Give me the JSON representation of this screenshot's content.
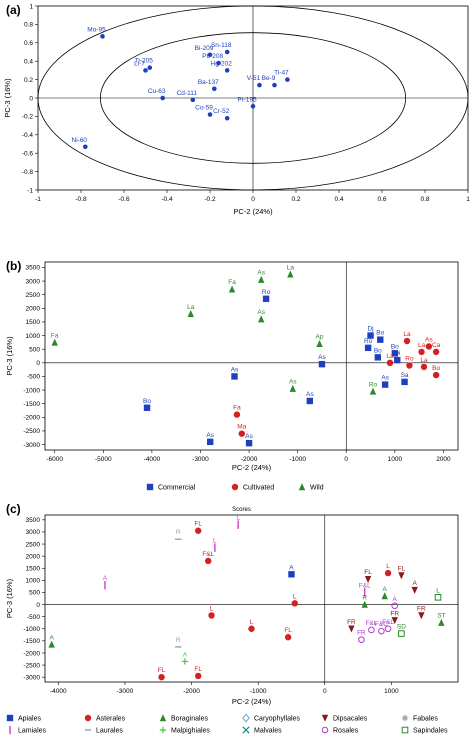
{
  "chart_data": [
    {
      "panel": "(a)",
      "type": "scatter",
      "xlabel": "PC-2 (24%)",
      "ylabel": "PC-3 (16%)",
      "xlim": [
        -1,
        1
      ],
      "ylim": [
        -1,
        1
      ],
      "xticks": [
        -1,
        -0.8,
        -0.6,
        -0.4,
        -0.2,
        0,
        0.2,
        0.4,
        0.6,
        0.8,
        1
      ],
      "yticks": [
        1,
        0.8,
        0.6,
        0.4,
        0.2,
        0,
        -0.2,
        -0.4,
        -0.6,
        -0.8,
        -1
      ],
      "xticklabels": [
        "-1",
        "-0.8",
        "-0.6",
        "-0.4",
        "-0.2",
        "0",
        "0.2",
        "0.4",
        "0.6",
        "0.8",
        "1"
      ],
      "yticklabels": [
        "1",
        "0.8",
        "0.6",
        "0.4",
        "0.2",
        "0",
        "-0.2",
        "-0.4",
        "-0.6",
        "-0.8",
        "-1"
      ],
      "color": "#1f3fbf",
      "points": [
        {
          "label": "Mo-95",
          "x": -0.7,
          "y": 0.67
        },
        {
          "label": "Sn-118",
          "x": -0.12,
          "y": 0.5
        },
        {
          "label": "Bi-209",
          "x": -0.2,
          "y": 0.47
        },
        {
          "label": "Pb-208",
          "x": -0.16,
          "y": 0.38
        },
        {
          "label": "Ti-205",
          "x": -0.48,
          "y": 0.33
        },
        {
          "label": "Li-7",
          "x": -0.5,
          "y": 0.3
        },
        {
          "label": "Hg-202",
          "x": -0.12,
          "y": 0.3
        },
        {
          "label": "Ti-47",
          "x": 0.16,
          "y": 0.2
        },
        {
          "label": "Ba-137",
          "x": -0.18,
          "y": 0.1
        },
        {
          "label": "V-51",
          "x": 0.03,
          "y": 0.14
        },
        {
          "label": "Be-9",
          "x": 0.1,
          "y": 0.14
        },
        {
          "label": "Cu-63",
          "x": -0.42,
          "y": 0.0
        },
        {
          "label": "Cd-111",
          "x": -0.28,
          "y": -0.02
        },
        {
          "label": "Pt-195",
          "x": 0.0,
          "y": -0.09
        },
        {
          "label": "Co-59",
          "x": -0.2,
          "y": -0.18
        },
        {
          "label": "Cr-52",
          "x": -0.12,
          "y": -0.22
        },
        {
          "label": "Ni-60",
          "x": -0.78,
          "y": -0.53
        }
      ]
    },
    {
      "panel": "(b)",
      "type": "scatter",
      "xlabel": "PC-2 (24%)",
      "ylabel": "PC-3 (16%)",
      "xlim": [
        -6200,
        2300
      ],
      "ylim": [
        -3200,
        3700
      ],
      "xticks": [
        -6000,
        -5000,
        -4000,
        -3000,
        -2000,
        -1000,
        0,
        1000,
        2000
      ],
      "yticks": [
        3500,
        3000,
        2500,
        2000,
        1500,
        1000,
        500,
        0,
        -500,
        -1000,
        -1500,
        -2000,
        -2500,
        -3000
      ],
      "xticklabels": [
        "-6000",
        "-5000",
        "-4000",
        "-3000",
        "-2000",
        "-1000",
        "0",
        "1000",
        "2000"
      ],
      "yticklabels": [
        "3500",
        "3000",
        "2500",
        "2000",
        "1500",
        "1000",
        "500",
        "0",
        "-500",
        "-1000",
        "-1500",
        "-2000",
        "-2500",
        "-3000"
      ],
      "legend": [
        {
          "name": "Commercial",
          "marker": "square",
          "color": "#1f3fbf"
        },
        {
          "name": "Cultivated",
          "marker": "circle",
          "color": "#d42020"
        },
        {
          "name": "Wild",
          "marker": "triangle",
          "color": "#2a8a2a"
        }
      ],
      "legend_placement": "bottom",
      "points": [
        {
          "label": "Fa",
          "x": -6000,
          "y": 750,
          "group": "Wild"
        },
        {
          "label": "La",
          "x": -3200,
          "y": 1800,
          "group": "Wild"
        },
        {
          "label": "Fa",
          "x": -2350,
          "y": 2700,
          "group": "Wild"
        },
        {
          "label": "As",
          "x": -1750,
          "y": 3050,
          "group": "Wild"
        },
        {
          "label": "La",
          "x": -1150,
          "y": 3250,
          "group": "Wild"
        },
        {
          "label": "As",
          "x": -1750,
          "y": 1600,
          "group": "Wild"
        },
        {
          "label": "Ro",
          "x": -1650,
          "y": 2350,
          "group": "Commercial"
        },
        {
          "label": "Ap",
          "x": -550,
          "y": 700,
          "group": "Wild"
        },
        {
          "label": "As",
          "x": -500,
          "y": -50,
          "group": "Commercial"
        },
        {
          "label": "As",
          "x": -2300,
          "y": -500,
          "group": "Commercial"
        },
        {
          "label": "As",
          "x": -1100,
          "y": -950,
          "group": "Wild"
        },
        {
          "label": "As",
          "x": -750,
          "y": -1400,
          "group": "Commercial"
        },
        {
          "label": "Bo",
          "x": -4100,
          "y": -1650,
          "group": "Commercial"
        },
        {
          "label": "Fa",
          "x": -2250,
          "y": -1900,
          "group": "Cultivated"
        },
        {
          "label": "Ma",
          "x": -2150,
          "y": -2600,
          "group": "Cultivated"
        },
        {
          "label": "As",
          "x": -2800,
          "y": -2900,
          "group": "Commercial"
        },
        {
          "label": "As",
          "x": -2000,
          "y": -2950,
          "group": "Commercial"
        },
        {
          "label": "Dj",
          "x": 500,
          "y": 1000,
          "group": "Commercial"
        },
        {
          "label": "Bo",
          "x": 700,
          "y": 850,
          "group": "Commercial"
        },
        {
          "label": "Ro",
          "x": 450,
          "y": 550,
          "group": "Commercial"
        },
        {
          "label": "Bo",
          "x": 650,
          "y": 200,
          "group": "Commercial"
        },
        {
          "label": "Bo",
          "x": 1000,
          "y": 350,
          "group": "Commercial"
        },
        {
          "label": "Di",
          "x": 1050,
          "y": 100,
          "group": "Commercial"
        },
        {
          "label": "La",
          "x": 1250,
          "y": 800,
          "group": "Cultivated"
        },
        {
          "label": "La",
          "x": 900,
          "y": 0,
          "group": "Cultivated"
        },
        {
          "label": "Ro",
          "x": 1300,
          "y": -100,
          "group": "Cultivated"
        },
        {
          "label": "As",
          "x": 1700,
          "y": 600,
          "group": "Cultivated"
        },
        {
          "label": "La",
          "x": 1550,
          "y": 400,
          "group": "Cultivated"
        },
        {
          "label": "Ca",
          "x": 1850,
          "y": 400,
          "group": "Cultivated"
        },
        {
          "label": "Bo",
          "x": 1850,
          "y": -450,
          "group": "Cultivated"
        },
        {
          "label": "La",
          "x": 1600,
          "y": -150,
          "group": "Cultivated"
        },
        {
          "label": "Sa",
          "x": 1200,
          "y": -700,
          "group": "Commercial"
        },
        {
          "label": "Ro",
          "x": 550,
          "y": -1050,
          "group": "Wild"
        },
        {
          "label": "As",
          "x": 800,
          "y": -800,
          "group": "Commercial"
        }
      ]
    },
    {
      "panel": "(c)",
      "type": "scatter",
      "title": "Scores",
      "xlabel": "PC-2 (24%)",
      "ylabel": "PC-3 (16%)",
      "xlim": [
        -4200,
        2000
      ],
      "ylim": [
        -3200,
        3700
      ],
      "xticks": [
        -4000,
        -3000,
        -2000,
        -1000,
        0,
        1000
      ],
      "yticks": [
        3500,
        3000,
        2500,
        2000,
        1500,
        1000,
        500,
        0,
        -500,
        -1000,
        -1500,
        -2000,
        -2500,
        -3000
      ],
      "xticklabels": [
        "-4000",
        "-3000",
        "-2000",
        "-1000",
        "0",
        "1000"
      ],
      "yticklabels": [
        "3500",
        "3000",
        "2500",
        "2000",
        "1500",
        "1000",
        "500",
        "0",
        "-500",
        "-1000",
        "-1500",
        "-2000",
        "-2500",
        "-3000"
      ],
      "legend": [
        {
          "name": "Apiales",
          "marker": "square",
          "color": "#1f3fbf"
        },
        {
          "name": "Asterales",
          "marker": "circle",
          "color": "#d42020"
        },
        {
          "name": "Boraginales",
          "marker": "triangle",
          "color": "#2a8a2a"
        },
        {
          "name": "Caryophyllales",
          "marker": "diamond",
          "color": "#6fa0d8"
        },
        {
          "name": "Dipsacales",
          "marker": "triangle-down",
          "color": "#8b1a1a"
        },
        {
          "name": "Fabales",
          "marker": "star",
          "color": "#9aa0a6"
        },
        {
          "name": "Lamiales",
          "marker": "bar",
          "color": "#d33ac9"
        },
        {
          "name": "Laurales",
          "marker": "dash",
          "color": "#9aa0a6"
        },
        {
          "name": "Malpighiales",
          "marker": "plus",
          "color": "#4cc04c"
        },
        {
          "name": "Malvales",
          "marker": "x",
          "color": "#1a8a8a"
        },
        {
          "name": "Rosales",
          "marker": "open-circle",
          "color": "#b03ad0"
        },
        {
          "name": "Sapindales",
          "marker": "open-square",
          "color": "#2a8a2a"
        }
      ],
      "legend_placement": "bottom",
      "points": [
        {
          "label": "A",
          "x": -4100,
          "y": -1650,
          "group": "Boraginales"
        },
        {
          "label": "A",
          "x": -3300,
          "y": 800,
          "group": "Lamiales"
        },
        {
          "label": "R",
          "x": -2200,
          "y": 2700,
          "group": "Laurales"
        },
        {
          "label": "FL",
          "x": -1900,
          "y": 3050,
          "group": "Asterales"
        },
        {
          "label": "L",
          "x": -1300,
          "y": 3300,
          "group": "Lamiales"
        },
        {
          "label": "L",
          "x": -1650,
          "y": 2350,
          "group": "Lamiales"
        },
        {
          "label": "F&L",
          "x": -1750,
          "y": 1800,
          "group": "Asterales"
        },
        {
          "label": "A",
          "x": -500,
          "y": 1250,
          "group": "Apiales"
        },
        {
          "label": "L",
          "x": -450,
          "y": 50,
          "group": "Asterales"
        },
        {
          "label": "L",
          "x": -1700,
          "y": -450,
          "group": "Asterales"
        },
        {
          "label": "L",
          "x": -1100,
          "y": -1000,
          "group": "Asterales"
        },
        {
          "label": "FL",
          "x": -550,
          "y": -1350,
          "group": "Asterales"
        },
        {
          "label": "R",
          "x": -2200,
          "y": -1750,
          "group": "Laurales"
        },
        {
          "label": "A",
          "x": -2100,
          "y": -2350,
          "group": "Malpighiales"
        },
        {
          "label": "FL",
          "x": -2450,
          "y": -3000,
          "group": "Asterales"
        },
        {
          "label": "FL",
          "x": -1900,
          "y": -2950,
          "group": "Asterales"
        },
        {
          "label": "FL",
          "x": 650,
          "y": 1050,
          "group": "Dipsacales"
        },
        {
          "label": "L",
          "x": 950,
          "y": 1300,
          "group": "Asterales"
        },
        {
          "label": "FL",
          "x": 1150,
          "y": 1200,
          "group": "Dipsacales"
        },
        {
          "label": "F&L",
          "x": 600,
          "y": 500,
          "group": "Lamiales"
        },
        {
          "label": "A",
          "x": 900,
          "y": 350,
          "group": "Boraginales"
        },
        {
          "label": "R",
          "x": 600,
          "y": 0,
          "group": "Boraginales"
        },
        {
          "label": "A",
          "x": 1050,
          "y": -50,
          "group": "Rosales"
        },
        {
          "label": "A",
          "x": 1350,
          "y": 600,
          "group": "Dipsacales"
        },
        {
          "label": "FR",
          "x": 1050,
          "y": -650,
          "group": "Dipsacales"
        },
        {
          "label": "F&L",
          "x": 950,
          "y": -1000,
          "group": "Rosales"
        },
        {
          "label": "FR",
          "x": 1450,
          "y": -450,
          "group": "Dipsacales"
        },
        {
          "label": "F&L",
          "x": 700,
          "y": -1050,
          "group": "Rosales"
        },
        {
          "label": "F&C",
          "x": 850,
          "y": -1100,
          "group": "Rosales"
        },
        {
          "label": "FR",
          "x": 400,
          "y": -1000,
          "group": "Dipsacales"
        },
        {
          "label": "FR",
          "x": 550,
          "y": -1450,
          "group": "Rosales"
        },
        {
          "label": "SD",
          "x": 1150,
          "y": -1200,
          "group": "Sapindales"
        },
        {
          "label": "ST",
          "x": 1750,
          "y": -750,
          "group": "Boraginales"
        },
        {
          "label": "L",
          "x": 1700,
          "y": 300,
          "group": "Sapindales"
        }
      ]
    }
  ]
}
